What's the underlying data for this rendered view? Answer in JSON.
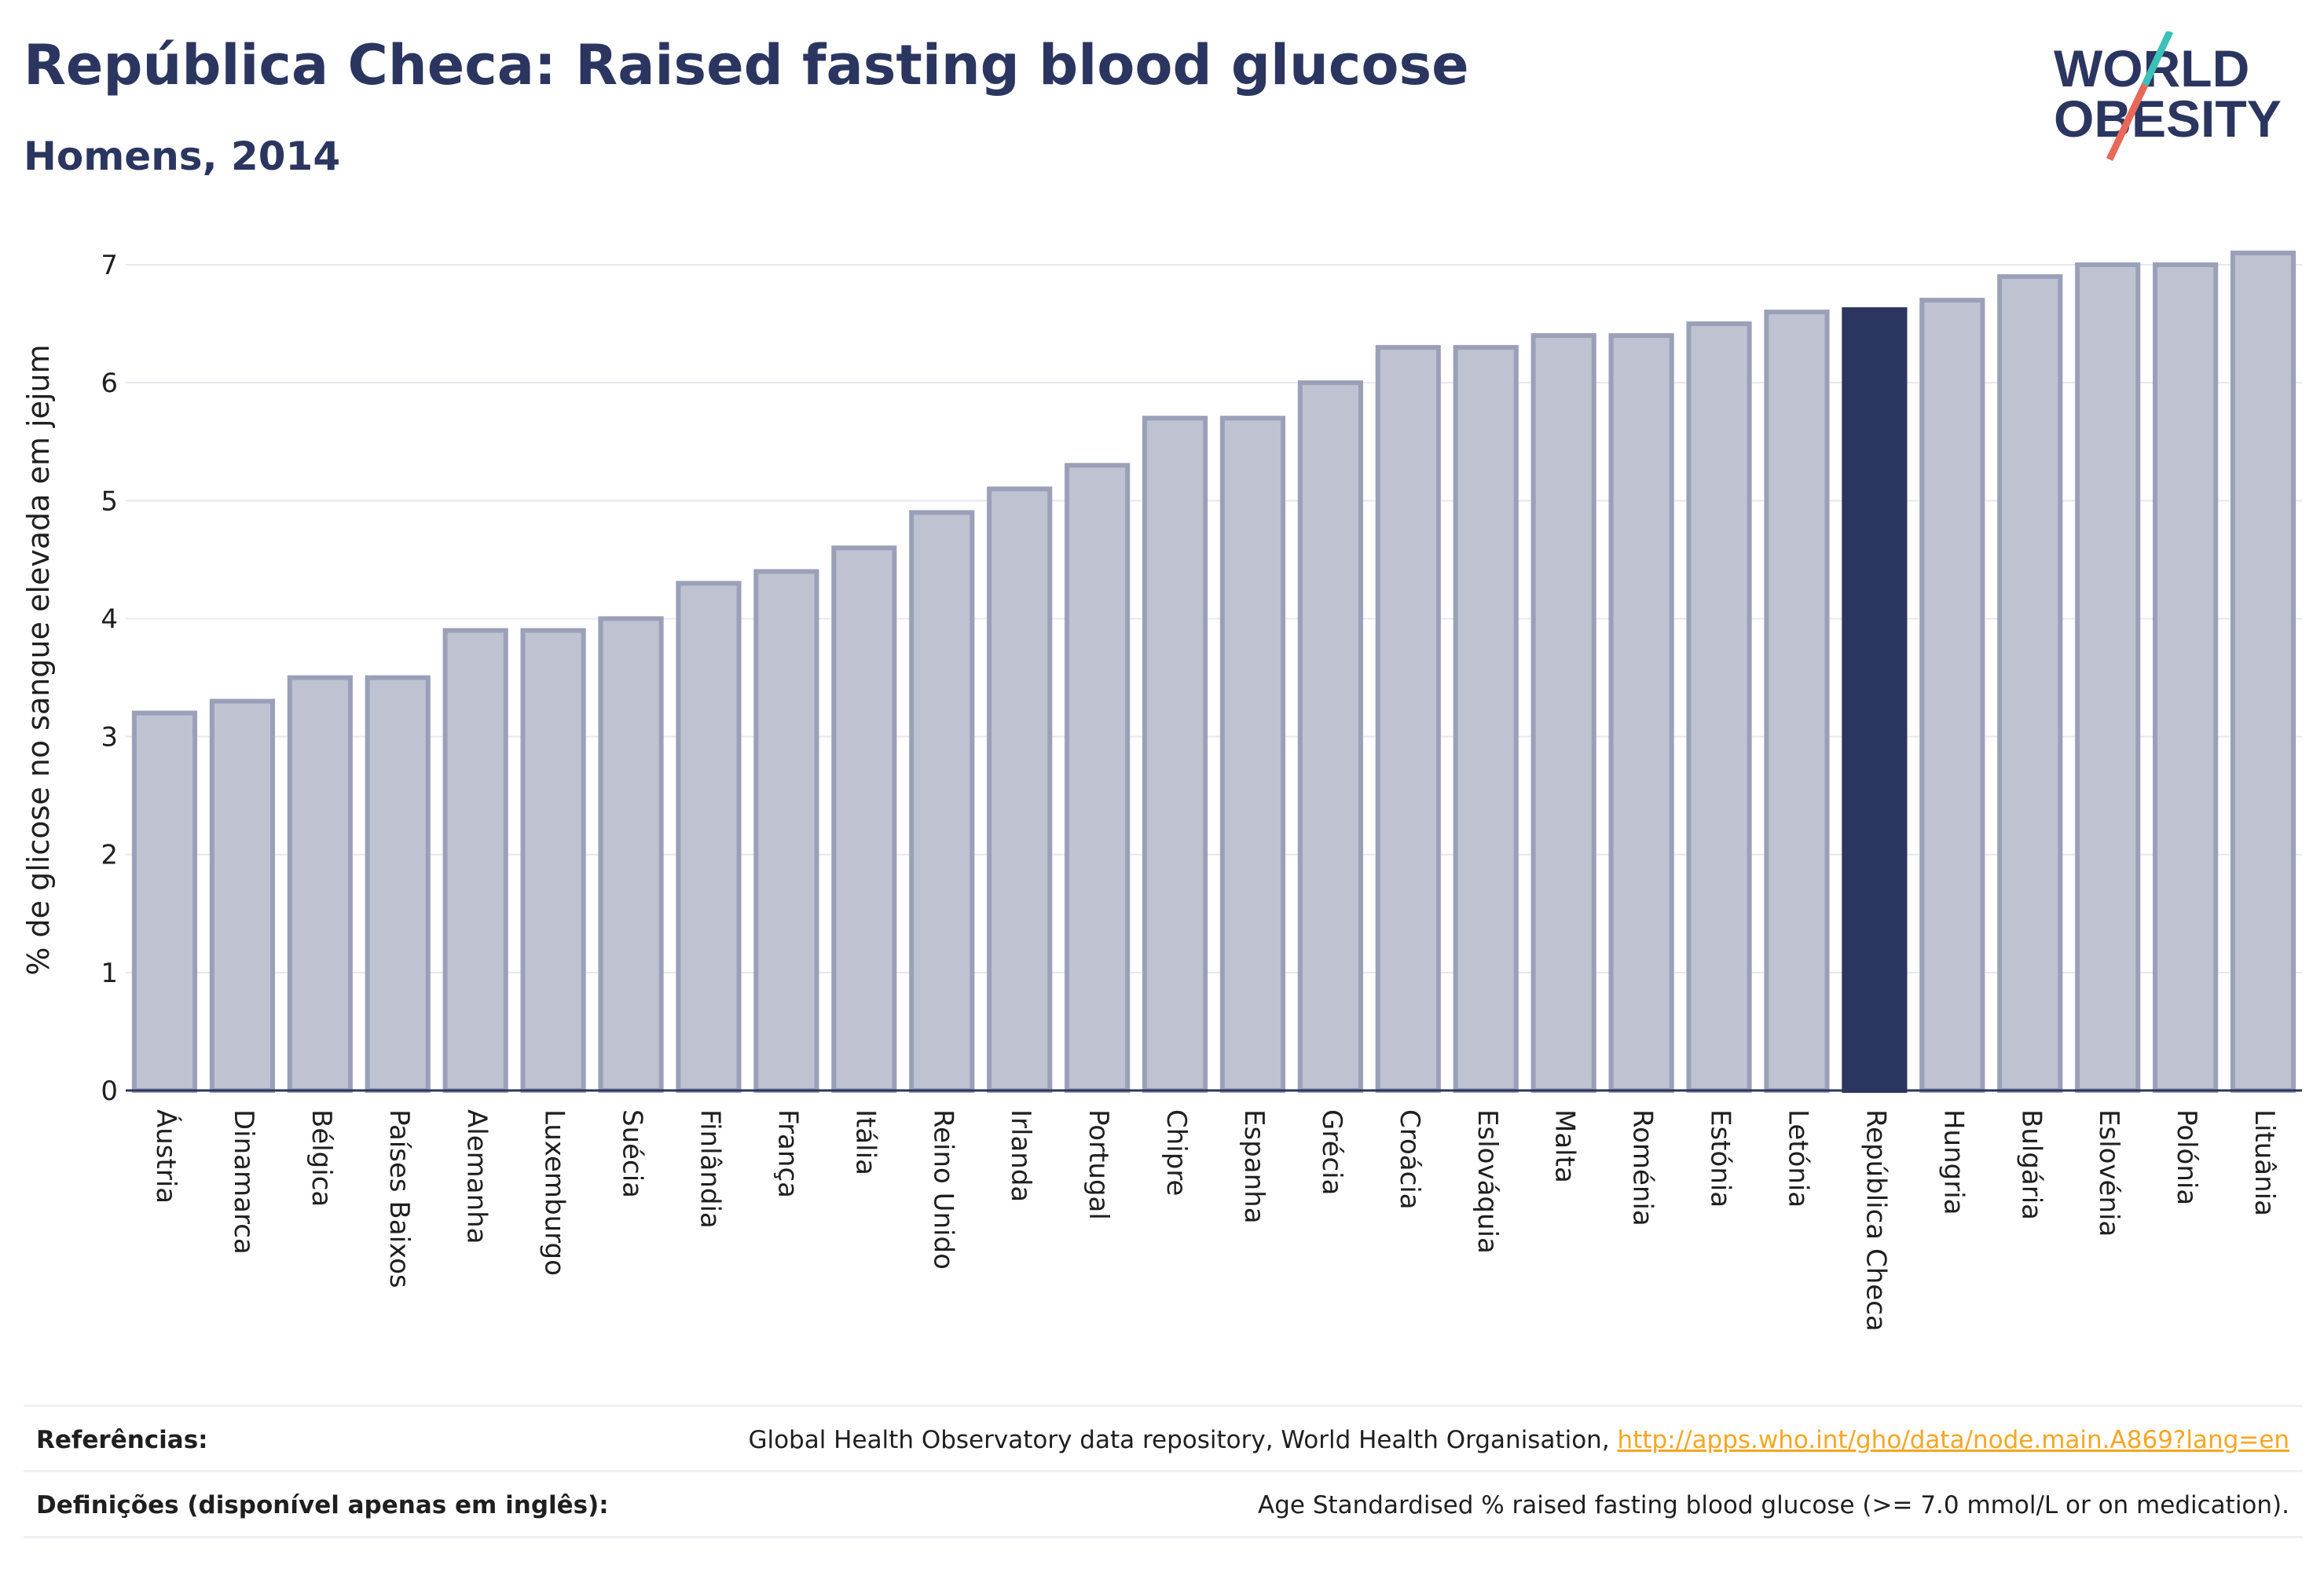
{
  "header": {
    "title": "República Checa: Raised fasting blood glucose",
    "subtitle": "Homens, 2014"
  },
  "logo": {
    "line1": "WORLD",
    "line2": "OBESITY",
    "colors": {
      "text": "#2b3660",
      "slash_top": "#3cc1b8",
      "slash_bottom": "#e8685a"
    }
  },
  "chart_data": {
    "type": "bar",
    "ylabel": "% de glicose no sangue elevada em jejum",
    "xlabel": "",
    "ylim": [
      0,
      7.3
    ],
    "yticks": [
      0,
      1,
      2,
      3,
      4,
      5,
      6,
      7
    ],
    "grid": true,
    "highlight": "República Checa",
    "colors": {
      "bar": "#bfc3d1",
      "bar_border": "#9aa0b8",
      "highlight": "#2b3660",
      "grid": "#e6e8ef"
    },
    "categories": [
      "Áustria",
      "Dinamarca",
      "Bélgica",
      "Países Baixos",
      "Alemanha",
      "Luxemburgo",
      "Suécia",
      "Finlândia",
      "França",
      "Itália",
      "Reino Unido",
      "Irlanda",
      "Portugal",
      "Chipre",
      "Espanha",
      "Grécia",
      "Croácia",
      "Eslováquia",
      "Malta",
      "Roménia",
      "Estónia",
      "Letónia",
      "República Checa",
      "Hungria",
      "Bulgária",
      "Eslovénia",
      "Polónia",
      "Lituânia"
    ],
    "values": [
      3.2,
      3.3,
      3.5,
      3.5,
      3.9,
      3.9,
      4.0,
      4.3,
      4.4,
      4.6,
      4.9,
      5.1,
      5.3,
      5.7,
      5.7,
      6.0,
      6.3,
      6.3,
      6.4,
      6.4,
      6.5,
      6.6,
      6.62,
      6.7,
      6.9,
      7.0,
      7.0,
      7.1
    ]
  },
  "references": {
    "ref_label": "Referências:",
    "ref_text": "Global Health Observatory data repository, World Health Organisation, ",
    "ref_link": "http://apps.who.int/gho/data/node.main.A869?lang=en",
    "def_label": "Definições (disponível apenas em inglês):",
    "def_text": "Age Standardised % raised fasting blood glucose (>= 7.0 mmol/L or on medication)."
  }
}
